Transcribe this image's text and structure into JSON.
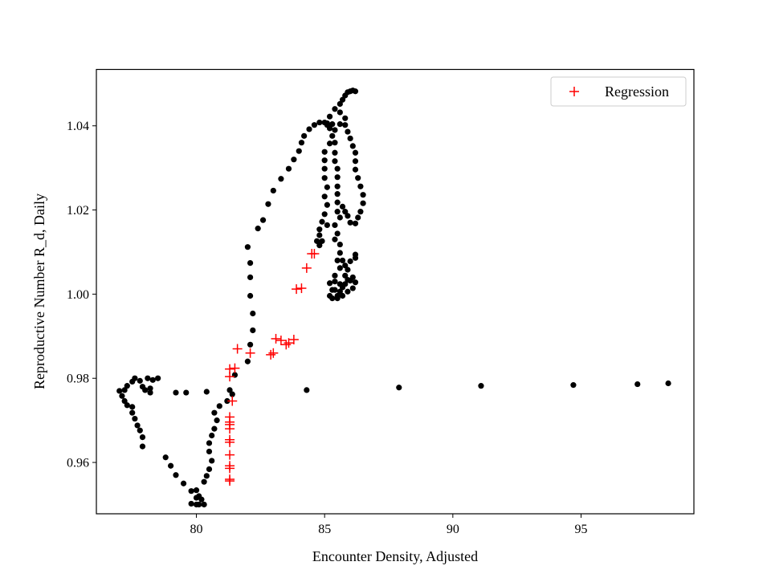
{
  "chart_data": {
    "type": "scatter",
    "xlabel": "Encounter Density, Adjusted",
    "ylabel": "Reproductive Number R_d, Daily",
    "xlim": [
      76.1,
      99.4
    ],
    "ylim": [
      0.9478,
      1.0534
    ],
    "x_ticks": [
      80,
      85,
      90,
      95
    ],
    "x_tick_labels": [
      "80",
      "85",
      "90",
      "95"
    ],
    "y_ticks": [
      0.96,
      0.98,
      1.0,
      1.02,
      1.04
    ],
    "y_tick_labels": [
      "0.96",
      "0.98",
      "1.00",
      "1.02",
      "1.04"
    ],
    "grid": false,
    "legend": {
      "placement": "top-right",
      "entries": [
        "Regression"
      ]
    },
    "series": [
      {
        "marker": "dot",
        "color": "#000000",
        "points": [
          [
            77.2,
            0.9772
          ],
          [
            77.0,
            0.977
          ],
          [
            77.1,
            0.9758
          ],
          [
            77.2,
            0.9746
          ],
          [
            77.3,
            0.9736
          ],
          [
            77.5,
            0.9732
          ],
          [
            77.5,
            0.9718
          ],
          [
            77.6,
            0.9704
          ],
          [
            77.7,
            0.9688
          ],
          [
            77.8,
            0.9676
          ],
          [
            77.9,
            0.966
          ],
          [
            77.9,
            0.9638
          ],
          [
            77.3,
            0.9782
          ],
          [
            77.5,
            0.9792
          ],
          [
            77.6,
            0.98
          ],
          [
            77.8,
            0.9794
          ],
          [
            78.0,
            0.9772
          ],
          [
            77.9,
            0.978
          ],
          [
            78.2,
            0.9776
          ],
          [
            78.2,
            0.9766
          ],
          [
            78.1,
            0.98
          ],
          [
            78.3,
            0.9796
          ],
          [
            78.5,
            0.98
          ],
          [
            79.2,
            0.9766
          ],
          [
            79.6,
            0.9766
          ],
          [
            80.4,
            0.9768
          ],
          [
            78.8,
            0.9612
          ],
          [
            79.0,
            0.9592
          ],
          [
            79.2,
            0.957
          ],
          [
            79.5,
            0.955
          ],
          [
            79.8,
            0.9532
          ],
          [
            80.0,
            0.9516
          ],
          [
            79.8,
            0.9502
          ],
          [
            80.0,
            0.95
          ],
          [
            80.1,
            0.95
          ],
          [
            80.1,
            0.952
          ],
          [
            80.2,
            0.9512
          ],
          [
            80.3,
            0.95
          ],
          [
            80.0,
            0.9534
          ],
          [
            80.3,
            0.9554
          ],
          [
            80.4,
            0.9568
          ],
          [
            80.5,
            0.9584
          ],
          [
            80.6,
            0.9604
          ],
          [
            80.5,
            0.9626
          ],
          [
            80.5,
            0.9646
          ],
          [
            80.6,
            0.9664
          ],
          [
            80.7,
            0.968
          ],
          [
            80.8,
            0.97
          ],
          [
            80.7,
            0.9718
          ],
          [
            80.9,
            0.9734
          ],
          [
            81.2,
            0.9746
          ],
          [
            81.4,
            0.9762
          ],
          [
            81.3,
            0.9772
          ],
          [
            81.5,
            0.9808
          ],
          [
            82.0,
            0.984
          ],
          [
            82.1,
            0.988
          ],
          [
            82.2,
            0.9914
          ],
          [
            82.2,
            0.9954
          ],
          [
            82.1,
            0.9996
          ],
          [
            82.1,
            1.004
          ],
          [
            82.1,
            1.0074
          ],
          [
            82.0,
            1.0112
          ],
          [
            82.4,
            1.0156
          ],
          [
            82.6,
            1.0176
          ],
          [
            82.8,
            1.0214
          ],
          [
            83.0,
            1.0246
          ],
          [
            83.3,
            1.0274
          ],
          [
            83.6,
            1.0298
          ],
          [
            83.8,
            1.032
          ],
          [
            84.0,
            1.034
          ],
          [
            84.1,
            1.036
          ],
          [
            84.2,
            1.0376
          ],
          [
            84.4,
            1.0392
          ],
          [
            84.6,
            1.0402
          ],
          [
            84.8,
            1.0408
          ],
          [
            85.0,
            1.0408
          ],
          [
            85.1,
            1.0406
          ],
          [
            85.3,
            1.0404
          ],
          [
            85.2,
            1.0394
          ],
          [
            85.3,
            1.0376
          ],
          [
            85.2,
            1.0358
          ],
          [
            85.0,
            1.0338
          ],
          [
            85.0,
            1.0318
          ],
          [
            85.0,
            1.0298
          ],
          [
            85.0,
            1.0276
          ],
          [
            85.1,
            1.0254
          ],
          [
            85.0,
            1.0232
          ],
          [
            85.1,
            1.0212
          ],
          [
            85.0,
            1.019
          ],
          [
            84.9,
            1.0172
          ],
          [
            85.1,
            1.0164
          ],
          [
            84.8,
            1.0154
          ],
          [
            84.8,
            1.014
          ],
          [
            84.7,
            1.0126
          ],
          [
            84.8,
            1.0116
          ],
          [
            84.9,
            1.0126
          ],
          [
            85.1,
            1.0402
          ],
          [
            85.2,
            1.0422
          ],
          [
            85.4,
            1.044
          ],
          [
            85.6,
            1.0452
          ],
          [
            85.7,
            1.0462
          ],
          [
            85.8,
            1.0472
          ],
          [
            85.9,
            1.048
          ],
          [
            86.0,
            1.0482
          ],
          [
            86.1,
            1.0484
          ],
          [
            86.2,
            1.0482
          ],
          [
            85.6,
            1.0432
          ],
          [
            85.8,
            1.0418
          ],
          [
            85.8,
            1.0402
          ],
          [
            85.9,
            1.0386
          ],
          [
            86.0,
            1.037
          ],
          [
            86.1,
            1.0352
          ],
          [
            86.2,
            1.0336
          ],
          [
            86.2,
            1.0316
          ],
          [
            86.2,
            1.0296
          ],
          [
            86.3,
            1.0276
          ],
          [
            86.4,
            1.0256
          ],
          [
            86.5,
            1.0236
          ],
          [
            86.5,
            1.0216
          ],
          [
            86.4,
            1.0196
          ],
          [
            86.3,
            1.0182
          ],
          [
            86.2,
            1.0168
          ],
          [
            86.0,
            1.017
          ],
          [
            85.9,
            1.0186
          ],
          [
            85.8,
            1.0196
          ],
          [
            85.7,
            1.0208
          ],
          [
            85.5,
            1.0218
          ],
          [
            85.5,
            1.0238
          ],
          [
            85.5,
            1.0256
          ],
          [
            85.5,
            1.0278
          ],
          [
            85.5,
            1.0298
          ],
          [
            85.4,
            1.0316
          ],
          [
            85.4,
            1.0336
          ],
          [
            85.4,
            1.036
          ],
          [
            85.4,
            1.039
          ],
          [
            85.6,
            1.0404
          ],
          [
            85.5,
            1.0196
          ],
          [
            85.6,
            1.0182
          ],
          [
            85.4,
            1.0164
          ],
          [
            85.5,
            1.0144
          ],
          [
            85.4,
            1.013
          ],
          [
            85.6,
            1.0118
          ],
          [
            85.6,
            1.0098
          ],
          [
            85.5,
            1.008
          ],
          [
            85.6,
            1.0062
          ],
          [
            85.4,
            1.0044
          ],
          [
            85.2,
            1.0026
          ],
          [
            85.3,
            1.001
          ],
          [
            85.2,
            0.9996
          ],
          [
            85.3,
            0.999
          ],
          [
            85.5,
            0.9996
          ],
          [
            85.6,
            1.0006
          ],
          [
            85.7,
            1.0016
          ],
          [
            85.8,
            1.0024
          ],
          [
            85.9,
            1.0034
          ],
          [
            86.0,
            1.0032
          ],
          [
            86.1,
            1.004
          ],
          [
            86.2,
            1.0028
          ],
          [
            86.1,
            1.0014
          ],
          [
            85.9,
            1.0006
          ],
          [
            85.7,
            0.9996
          ],
          [
            85.5,
            0.999
          ],
          [
            85.4,
            1.001
          ],
          [
            85.6,
            1.0024
          ],
          [
            85.8,
            1.0044
          ],
          [
            85.9,
            1.0058
          ],
          [
            85.8,
            1.0068
          ],
          [
            86.0,
            1.0078
          ],
          [
            86.2,
            1.0086
          ],
          [
            86.2,
            1.0094
          ],
          [
            85.7,
            1.008
          ],
          [
            85.4,
            1.003
          ],
          [
            84.3,
            0.9772
          ],
          [
            87.9,
            0.9778
          ],
          [
            91.1,
            0.9782
          ],
          [
            94.7,
            0.9784
          ],
          [
            97.2,
            0.9786
          ],
          [
            98.4,
            0.9788
          ]
        ]
      },
      {
        "name": "Regression",
        "marker": "plus",
        "color": "#ff0000",
        "points": [
          [
            81.3,
            0.9556
          ],
          [
            81.3,
            0.956
          ],
          [
            81.3,
            0.9586
          ],
          [
            81.3,
            0.9592
          ],
          [
            81.3,
            0.9618
          ],
          [
            81.3,
            0.9648
          ],
          [
            81.3,
            0.9654
          ],
          [
            81.3,
            0.968
          ],
          [
            81.3,
            0.969
          ],
          [
            81.3,
            0.9696
          ],
          [
            81.3,
            0.9708
          ],
          [
            81.4,
            0.9746
          ],
          [
            81.3,
            0.9804
          ],
          [
            81.3,
            0.9822
          ],
          [
            81.5,
            0.9824
          ],
          [
            81.6,
            0.987
          ],
          [
            82.1,
            0.986
          ],
          [
            82.9,
            0.9856
          ],
          [
            83.0,
            0.986
          ],
          [
            83.1,
            0.9894
          ],
          [
            83.3,
            0.989
          ],
          [
            83.5,
            0.988
          ],
          [
            83.6,
            0.9884
          ],
          [
            83.8,
            0.9892
          ],
          [
            83.9,
            1.0012
          ],
          [
            84.1,
            1.0014
          ],
          [
            84.3,
            1.0062
          ],
          [
            84.5,
            1.0096
          ],
          [
            84.6,
            1.0096
          ]
        ]
      }
    ]
  }
}
